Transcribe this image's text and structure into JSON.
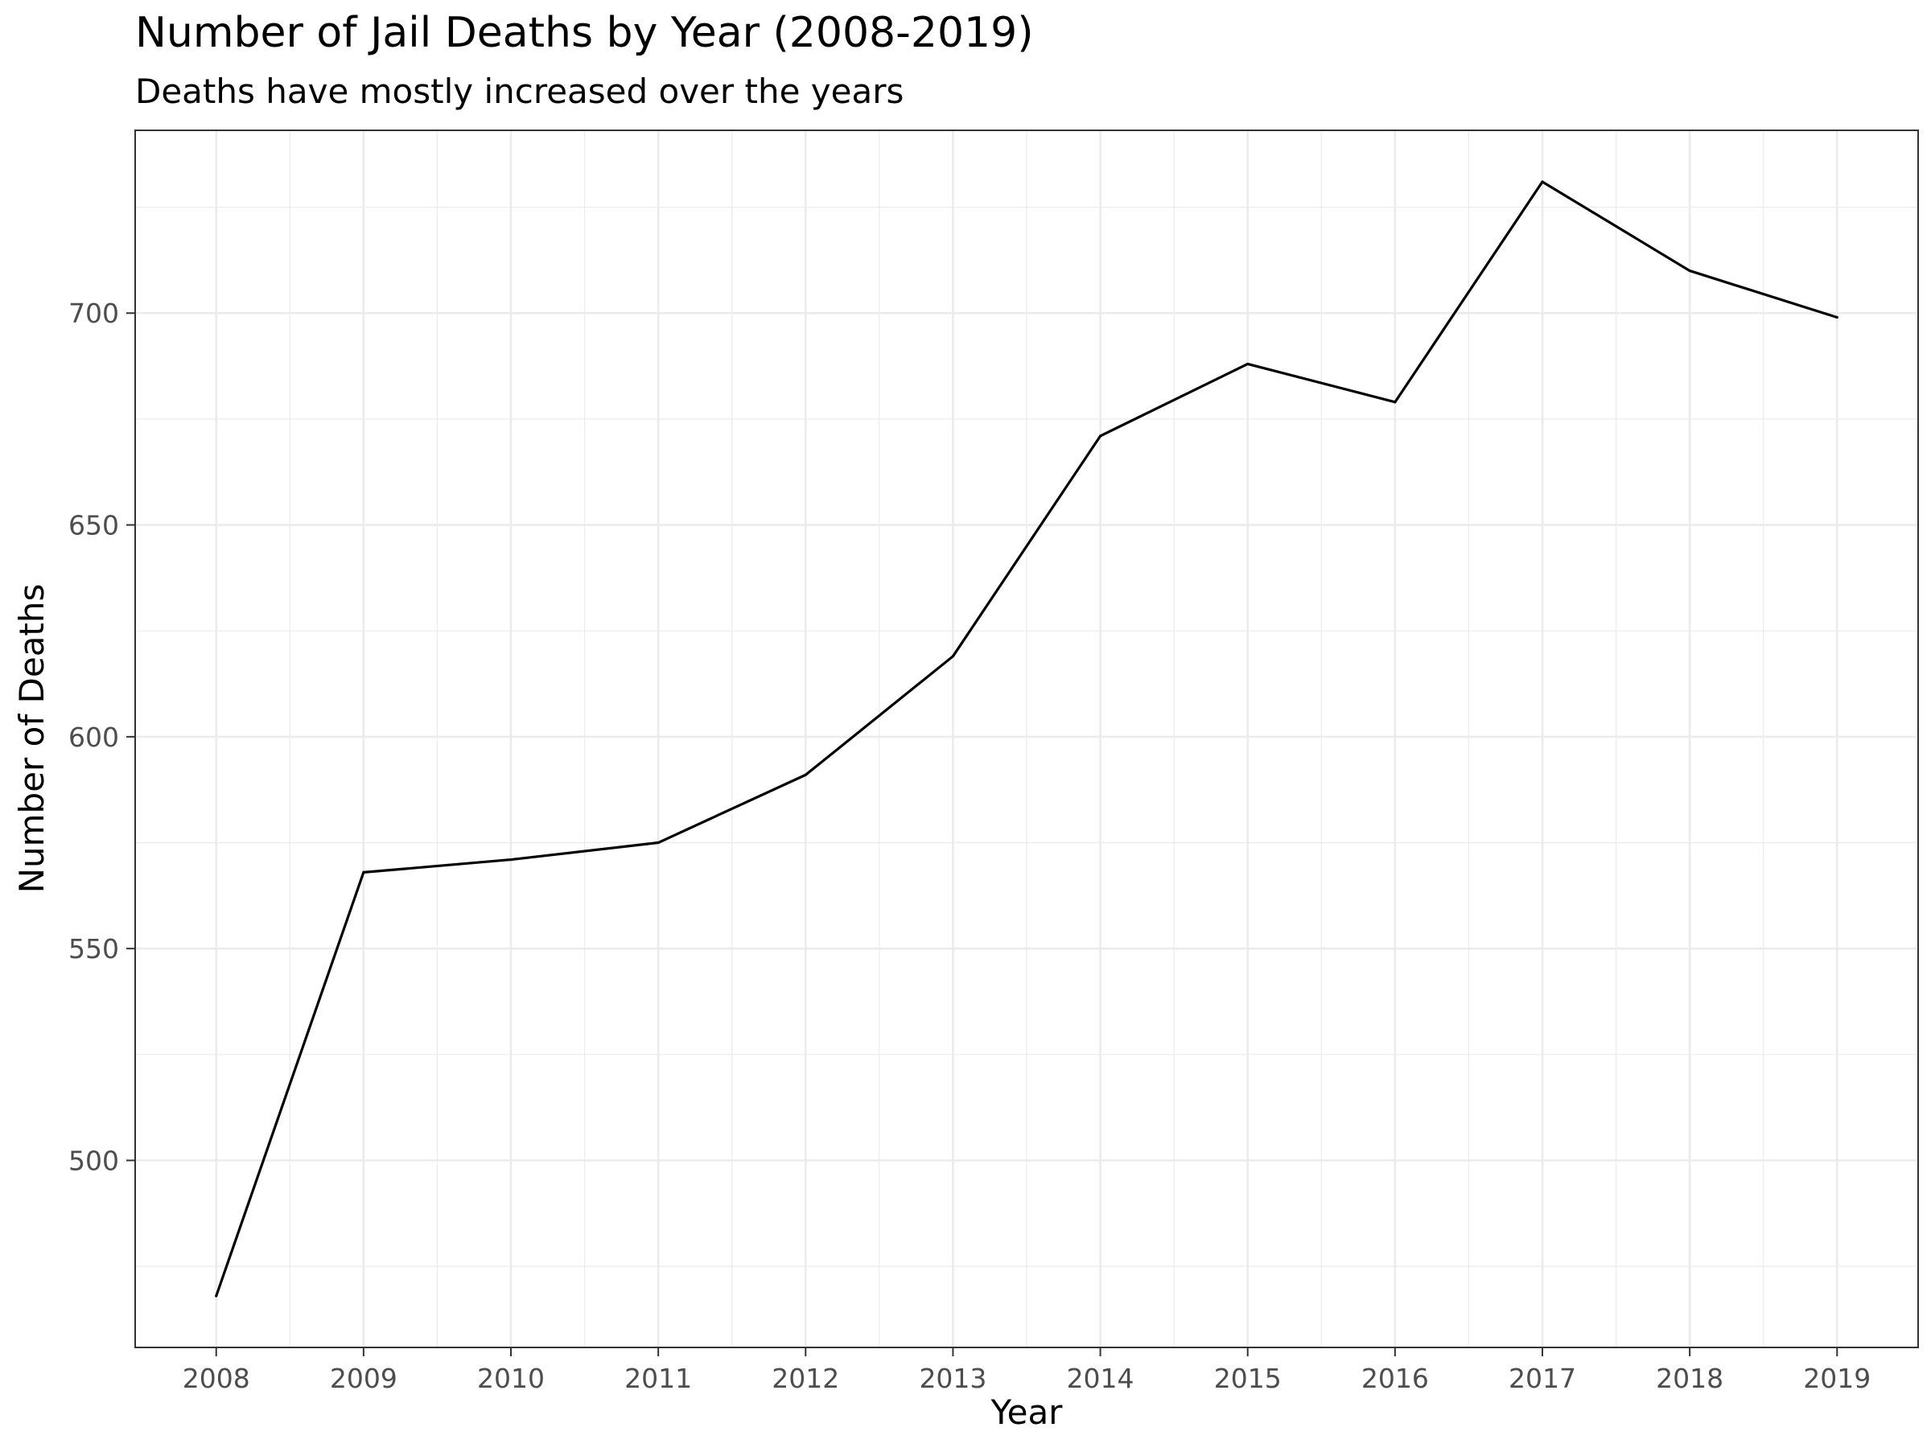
{
  "chart_data": {
    "type": "line",
    "title": "Number of Jail Deaths by Year (2008-2019)",
    "subtitle": "Deaths have mostly increased over the years",
    "xlabel": "Year",
    "ylabel": "Number of Deaths",
    "x": [
      2008,
      2009,
      2010,
      2011,
      2012,
      2013,
      2014,
      2015,
      2016,
      2017,
      2018,
      2019
    ],
    "values": [
      468,
      568,
      571,
      575,
      591,
      619,
      671,
      688,
      679,
      731,
      710,
      699
    ],
    "x_ticks": [
      "2008",
      "2009",
      "2010",
      "2011",
      "2012",
      "2013",
      "2014",
      "2015",
      "2016",
      "2017",
      "2018",
      "2019"
    ],
    "y_ticks": [
      500,
      550,
      600,
      650,
      700
    ],
    "xlim": [
      2007.45,
      2019.55
    ],
    "ylim": [
      455.85,
      743.15
    ],
    "grid": true,
    "legend": "none",
    "line_color": "#000000",
    "grid_color": "#ebebeb",
    "border_color": "#333333"
  }
}
